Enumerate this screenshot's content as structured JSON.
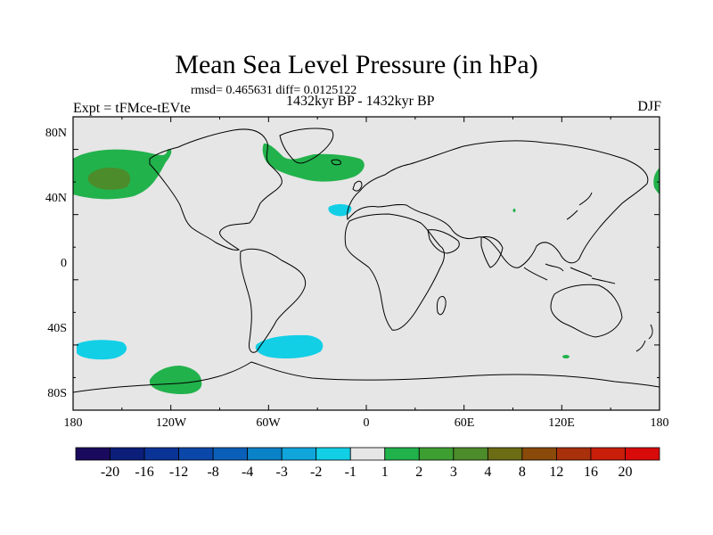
{
  "map": {
    "title": "Mean Sea Level Pressure (in hPa)",
    "stats_line": "rmsd= 0.465631 diff= 0.0125122",
    "period": "1432kyr BP - 1432kyr BP",
    "experiment": "Expt = tFMce-tEVte",
    "season": "DJF",
    "lat_labels": [
      "80N",
      "40N",
      "0",
      "40S",
      "80S"
    ],
    "lon_labels": [
      "180",
      "120W",
      "60W",
      "0",
      "60E",
      "120E",
      "180"
    ],
    "background_color": "#e6e6e6",
    "anomalies": [
      {
        "name": "north-pacific-positive",
        "category": "2",
        "color": "#22b24c"
      },
      {
        "name": "north-pacific-core",
        "category": "3",
        "color": "#4c8c2a"
      },
      {
        "name": "north-atlantic-positive",
        "category": "2",
        "color": "#22b24c"
      },
      {
        "name": "east-atlantic-negative",
        "category": "-2",
        "color": "#12cfe6"
      },
      {
        "name": "south-pacific-negative",
        "category": "-2",
        "color": "#12cfe6"
      },
      {
        "name": "south-atlantic-negative",
        "category": "-2",
        "color": "#12cfe6"
      },
      {
        "name": "antarctic-positive",
        "category": "2",
        "color": "#22b24c"
      },
      {
        "name": "far-east-positive",
        "category": "2",
        "color": "#22b24c"
      }
    ]
  },
  "legend": {
    "levels": [
      "-20",
      "-16",
      "-12",
      "-8",
      "-4",
      "-3",
      "-2",
      "-1",
      "1",
      "2",
      "3",
      "4",
      "8",
      "12",
      "16",
      "20"
    ],
    "colors": [
      "#1a0a5e",
      "#0a1e7a",
      "#0a3396",
      "#0a47a8",
      "#0a5fb8",
      "#0a82c8",
      "#10a6dc",
      "#12cfe6",
      "#e6e6e6",
      "#22b24c",
      "#3d9e32",
      "#4c8c2a",
      "#6b6c14",
      "#8a4a0a",
      "#a8300a",
      "#c81e0a",
      "#d80a0a"
    ]
  }
}
